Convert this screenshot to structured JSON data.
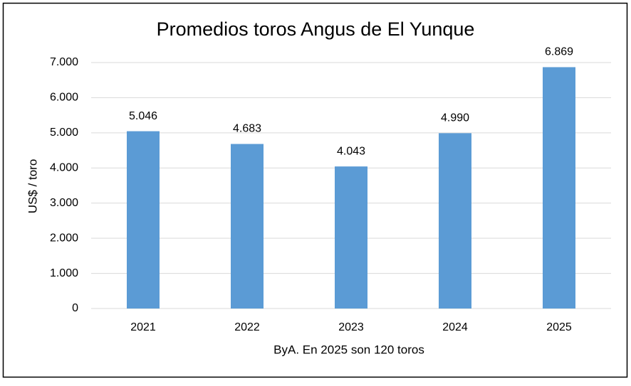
{
  "chart_data": {
    "type": "bar",
    "title": "Promedios toros Angus de El Yunque",
    "y_label": "US$ / toro",
    "x_label": "ByA. En 2025 son 120 toros",
    "categories": [
      "2021",
      "2022",
      "2023",
      "2024",
      "2025"
    ],
    "values": [
      5046,
      4683,
      4043,
      4990,
      6869
    ],
    "value_labels": [
      "5.046",
      "4.683",
      "4.043",
      "4.990",
      "6.869"
    ],
    "color": "#5b9bd5",
    "ylim": [
      0,
      7000
    ],
    "yticks": [
      0,
      {
        "value": 1000,
        "label": "1.000"
      },
      {
        "value": 2000,
        "label": "2.000"
      },
      {
        "value": 3000,
        "label": "3.000"
      },
      {
        "value": 4000,
        "label": "4.000"
      },
      {
        "value": 5000,
        "label": "5.000"
      },
      {
        "value": 6000,
        "label": "6.000"
      },
      {
        "value": 7000,
        "label": "7.000"
      }
    ],
    "grid": true
  }
}
